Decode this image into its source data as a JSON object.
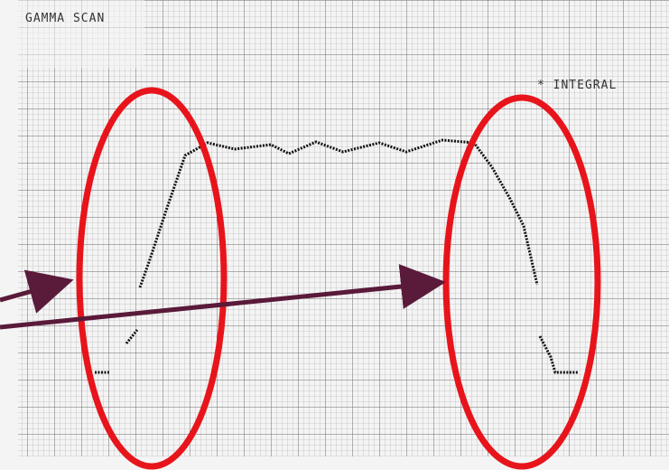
{
  "header": {
    "title": "GAMMA SCAN"
  },
  "legend": {
    "label": "* INTEGRAL"
  }
}
